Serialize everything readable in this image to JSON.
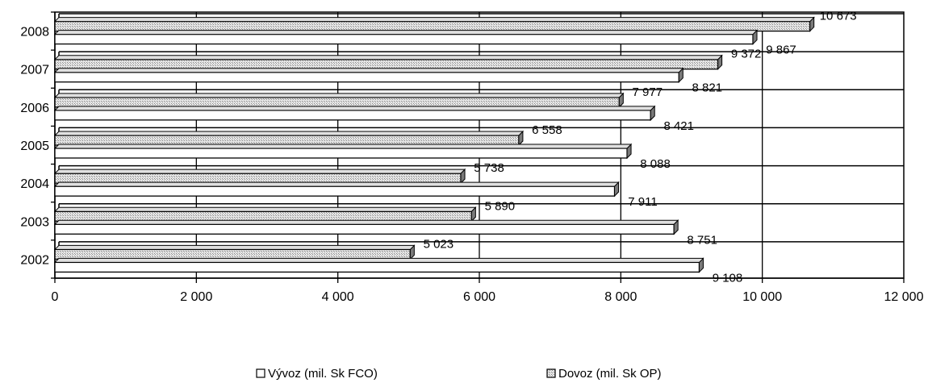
{
  "chart_data": {
    "type": "bar",
    "orientation": "horizontal",
    "categories": [
      "2002",
      "2003",
      "2004",
      "2005",
      "2006",
      "2007",
      "2008"
    ],
    "series": [
      {
        "name": "Výv​oz (mil. Sk FCO)",
        "values": [
          9108,
          8751,
          7911,
          8088,
          8421,
          8821,
          9867
        ],
        "labels": [
          "9 108",
          "8 751",
          "7 911",
          "8 088",
          "8 421",
          "8 821",
          "9 867"
        ],
        "fill": "#ffffff"
      },
      {
        "name": "Dovoz (mil. Sk OP)",
        "values": [
          5023,
          5890,
          5738,
          6558,
          7977,
          9372,
          10673
        ],
        "labels": [
          "5 023",
          "5 890",
          "5 738",
          "6 558",
          "7 977",
          "9 372",
          "10 673"
        ],
        "fill": "#c0c0c0"
      }
    ],
    "xlim": [
      0,
      12000
    ],
    "xticks": [
      0,
      2000,
      4000,
      6000,
      8000,
      10000,
      12000
    ],
    "xtick_labels": [
      "0",
      "2 000",
      "4 000",
      "6 000",
      "8 000",
      "10 000",
      "12 000"
    ],
    "grid": true,
    "legend_position": "bottom",
    "style": "3d-bars"
  }
}
